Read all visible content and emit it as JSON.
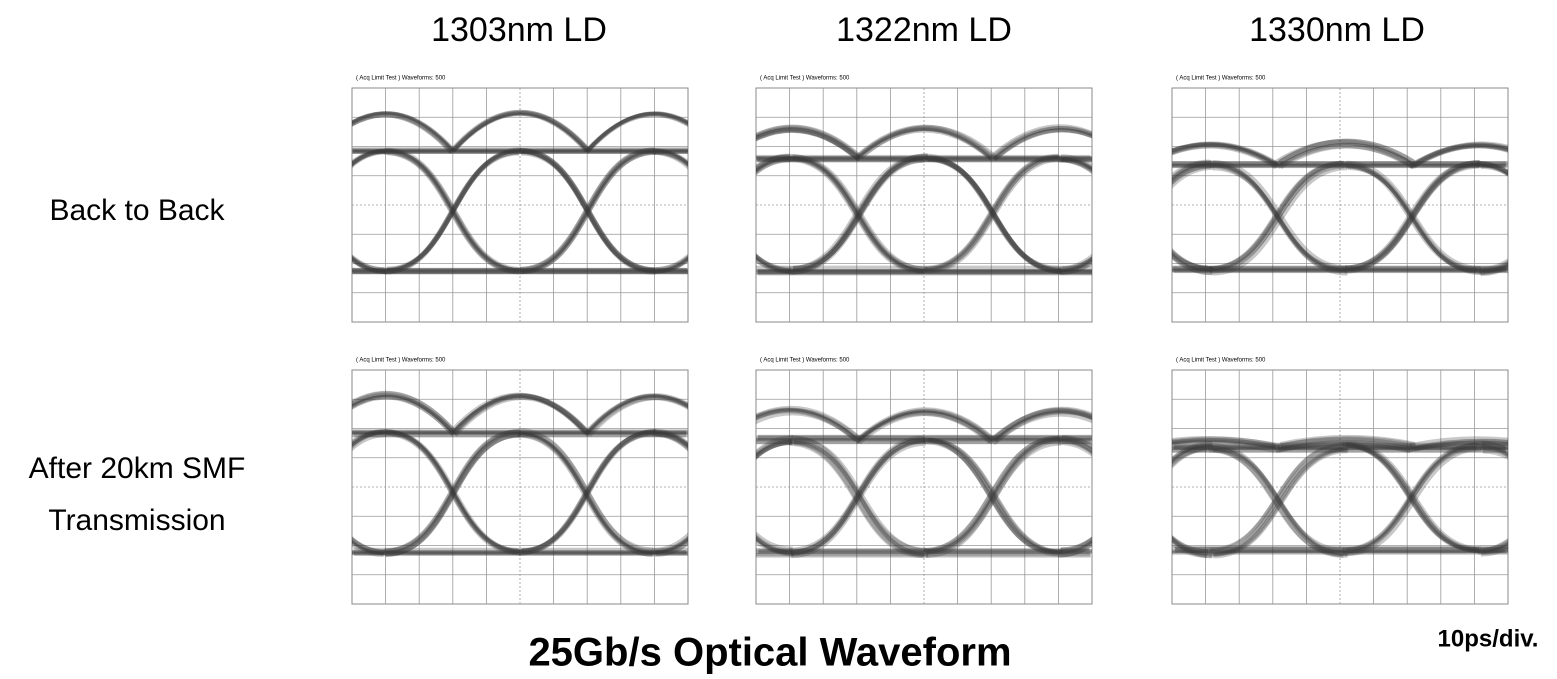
{
  "columns": [
    "1303nm LD",
    "1322nm LD",
    "1330nm LD"
  ],
  "rows": [
    [
      "Back to Back"
    ],
    [
      "After 20km SMF",
      "Transmission"
    ]
  ],
  "panel_header": "( Acq Limit Test ) Waveforms: 500",
  "title": "25Gb/s Optical Waveform",
  "scale_note": "10ps/div."
}
